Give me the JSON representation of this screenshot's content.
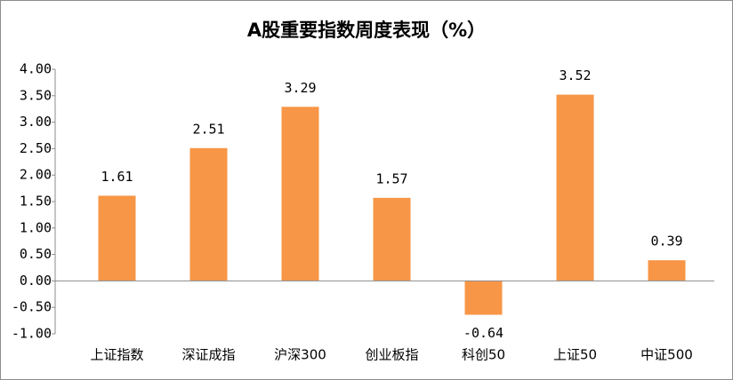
{
  "chart_data": {
    "type": "bar",
    "title": "A股重要指数周度表现（%）",
    "categories": [
      "上证指数",
      "深证成指",
      "沪深300",
      "创业板指",
      "科创50",
      "上证50",
      "中证500"
    ],
    "values": [
      1.61,
      2.51,
      3.29,
      1.57,
      -0.64,
      3.52,
      0.39
    ],
    "color": "#f79646",
    "ylim": [
      -1,
      4
    ],
    "yticks": [
      {
        "value": -1,
        "label": "-1.00"
      },
      {
        "value": -0.5,
        "label": "-0.50"
      },
      {
        "value": 0,
        "label": "0.00"
      },
      {
        "value": 0.5,
        "label": "0.50"
      },
      {
        "value": 1,
        "label": "1.00"
      },
      {
        "value": 1.5,
        "label": "1.50"
      },
      {
        "value": 2,
        "label": "2.00"
      },
      {
        "value": 2.5,
        "label": "2.50"
      },
      {
        "value": 3,
        "label": "3.00"
      },
      {
        "value": 3.5,
        "label": "3.50"
      },
      {
        "value": 4,
        "label": "4.00"
      }
    ],
    "grid": false
  }
}
